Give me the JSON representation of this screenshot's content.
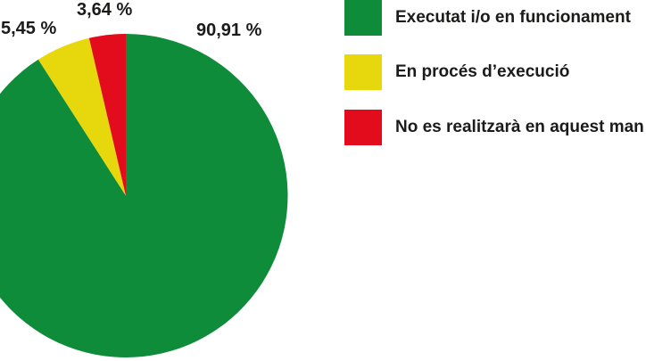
{
  "chart_data": {
    "type": "pie",
    "title": "",
    "start_angle": "12-oclock",
    "direction": "clockwise",
    "legend_position": "right",
    "slices": [
      {
        "label": "Executat i/o en funcionament",
        "value": 90.91,
        "display": "90,91 %",
        "color": "#0e8c39"
      },
      {
        "label": "En procés d’execució",
        "value": 5.45,
        "display": "5,45 %",
        "color": "#e7d70d"
      },
      {
        "label": "No es realitzarà en aquest man",
        "value": 3.64,
        "display": "3,64 %",
        "color": "#e30c1d"
      }
    ]
  },
  "text_color": "#1c1b1a"
}
